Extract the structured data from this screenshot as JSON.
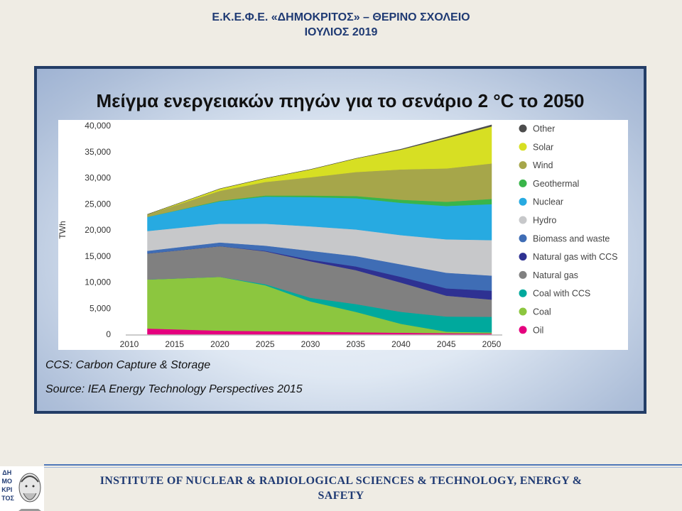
{
  "header": {
    "line1": "Ε.Κ.Ε.Φ.Ε. «ΔΗΜΟΚΡΙΤΟΣ» – ΘΕΡΙΝΟ ΣΧΟΛΕΙΟ",
    "line2": "ΙΟΥΛΙΟΣ 2019"
  },
  "notes": {
    "ccs": "CCS: Carbon Capture & Storage",
    "source": "Source: IEA Energy Technology Perspectives 2015"
  },
  "footer": {
    "line1": "INSTITUTE OF NUCLEAR & RADIOLOGICAL SCIENCES & TECHNOLOGY, ENERGY &",
    "line2": "SAFETY"
  },
  "logo": {
    "text": "ΔΗΜΟΚΡΙΤΟΣ"
  },
  "chart_data": {
    "type": "area",
    "stacked": true,
    "title": "Μείγμα ενεργειακών πηγών για το σενάριο 2 °C το 2050",
    "ylabel": "TWh",
    "xlabel": "",
    "x": [
      2012,
      2020,
      2025,
      2030,
      2035,
      2040,
      2045,
      2050
    ],
    "xticks": [
      "2010",
      "2015",
      "2020",
      "2025",
      "2030",
      "2035",
      "2040",
      "2045",
      "2050"
    ],
    "xlim": [
      2010,
      2050
    ],
    "ylim": [
      0,
      40000
    ],
    "yticks": [
      "0",
      "5,000",
      "10,000",
      "15,000",
      "20,000",
      "25,000",
      "30,000",
      "35,000",
      "40,000"
    ],
    "legend_position": "right",
    "series": [
      {
        "name": "Oil",
        "color": "#e5007e",
        "values": [
          1100,
          700,
          600,
          500,
          400,
          300,
          200,
          150
        ]
      },
      {
        "name": "Coal",
        "color": "#8cc63f",
        "values": [
          9400,
          10300,
          8800,
          5800,
          3900,
          1700,
          300,
          200
        ]
      },
      {
        "name": "Coal with CCS",
        "color": "#00a99d",
        "values": [
          0,
          0,
          200,
          700,
          1500,
          2300,
          2900,
          3000
        ]
      },
      {
        "name": "Natural gas",
        "color": "#808080",
        "values": [
          5000,
          5900,
          6300,
          7000,
          6500,
          5600,
          4000,
          3300
        ]
      },
      {
        "name": "Natural gas with CCS",
        "color": "#2e3192",
        "values": [
          0,
          0,
          100,
          300,
          700,
          1100,
          1400,
          1700
        ]
      },
      {
        "name": "Biomass and waste",
        "color": "#3f6db5",
        "values": [
          500,
          700,
          1000,
          1700,
          2000,
          2400,
          3000,
          2900
        ]
      },
      {
        "name": "Hydro",
        "color": "#c7c8ca",
        "values": [
          3800,
          3600,
          4200,
          4700,
          5100,
          5600,
          6400,
          6800
        ]
      },
      {
        "name": "Nuclear",
        "color": "#27aae1",
        "values": [
          2700,
          4300,
          5200,
          5600,
          6000,
          6200,
          6400,
          6900
        ]
      },
      {
        "name": "Geothermal",
        "color": "#39b54a",
        "values": [
          0,
          100,
          200,
          300,
          400,
          600,
          800,
          1000
        ]
      },
      {
        "name": "Wind",
        "color": "#a6a64a",
        "values": [
          500,
          1900,
          2600,
          3500,
          4600,
          5800,
          6400,
          6800
        ]
      },
      {
        "name": "Solar",
        "color": "#d7df23",
        "values": [
          0,
          400,
          700,
          1500,
          2600,
          3800,
          5800,
          7100
        ]
      },
      {
        "name": "Other",
        "color": "#4d4d4d",
        "values": [
          0,
          0,
          0,
          0,
          0,
          100,
          200,
          300
        ]
      }
    ],
    "legend_order": [
      "Other",
      "Solar",
      "Wind",
      "Geothermal",
      "Nuclear",
      "Hydro",
      "Biomass and waste",
      "Natural gas with CCS",
      "Natural gas",
      "Coal with CCS",
      "Coal",
      "Oil"
    ]
  }
}
